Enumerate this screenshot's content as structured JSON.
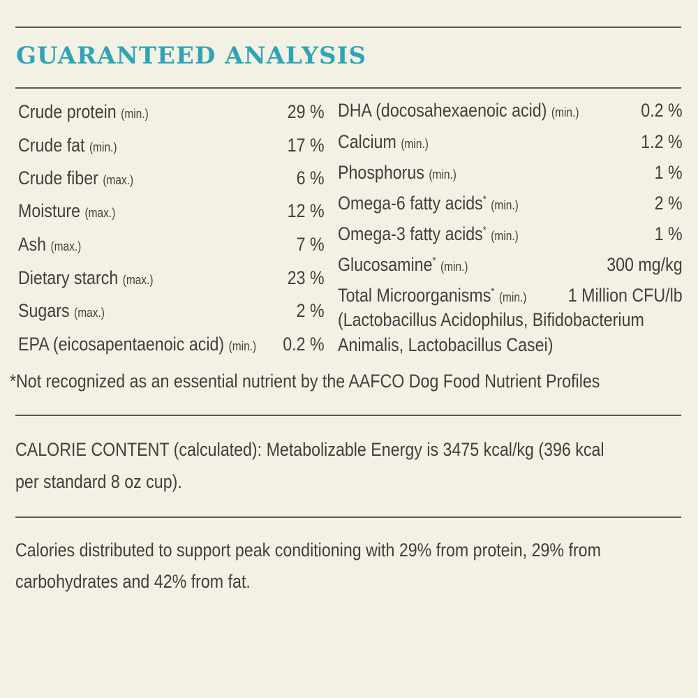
{
  "heading": "GUARANTEED ANALYSIS",
  "left_column": [
    {
      "label": "Crude protein",
      "qualifier": "(min.)",
      "value": "29 %"
    },
    {
      "label": "Crude fat",
      "qualifier": "(min.)",
      "value": "17 %"
    },
    {
      "label": "Crude fiber",
      "qualifier": "(max.)",
      "value": "6 %"
    },
    {
      "label": "Moisture",
      "qualifier": "(max.)",
      "value": "12 %"
    },
    {
      "label": "Ash",
      "qualifier": "(max.)",
      "value": "7 %"
    },
    {
      "label": "Dietary starch",
      "qualifier": "(max.)",
      "value": "23 %"
    },
    {
      "label": "Sugars",
      "qualifier": "(max.)",
      "value": "2 %"
    },
    {
      "label": "EPA (eicosapentaenoic acid)",
      "qualifier": "(min.)",
      "value": "0.2 %"
    }
  ],
  "right_column": [
    {
      "label": "DHA (docosahexaenoic acid)",
      "qualifier": "(min.)",
      "value": "0.2 %",
      "asterisk": ""
    },
    {
      "label": "Calcium",
      "qualifier": "(min.)",
      "value": "1.2 %",
      "asterisk": ""
    },
    {
      "label": "Phosphorus",
      "qualifier": "(min.)",
      "value": "1 %",
      "asterisk": ""
    },
    {
      "label": "Omega-6 fatty acids",
      "qualifier": "(min.)",
      "value": "2 %",
      "asterisk": "*"
    },
    {
      "label": "Omega-3 fatty acids",
      "qualifier": "(min.)",
      "value": "1 %",
      "asterisk": "*"
    },
    {
      "label": "Glucosamine",
      "qualifier": "(min.)",
      "value": "300 mg/kg",
      "asterisk": "*"
    },
    {
      "label": "Total Microorganisms",
      "qualifier": "(min.)",
      "value": "1 Million CFU/lb",
      "asterisk": "*"
    }
  ],
  "microorganism_detail_line1": "(Lactobacillus Acidophilus, Bifidobacterium",
  "microorganism_detail_line2": "Animalis, Lactobacillus Casei)",
  "footnote": "*Not recognized as an essential nutrient by the AAFCO Dog Food Nutrient Profiles",
  "calorie_line1": "CALORIE CONTENT (calculated): Metabolizable Energy is 3475 kcal/kg (396 kcal",
  "calorie_line2": "per standard 8 oz cup).",
  "distribution_line1": "Calories distributed to support peak conditioning with 29% from protein, 29% from",
  "distribution_line2": "carbohydrates and 42% from fat."
}
